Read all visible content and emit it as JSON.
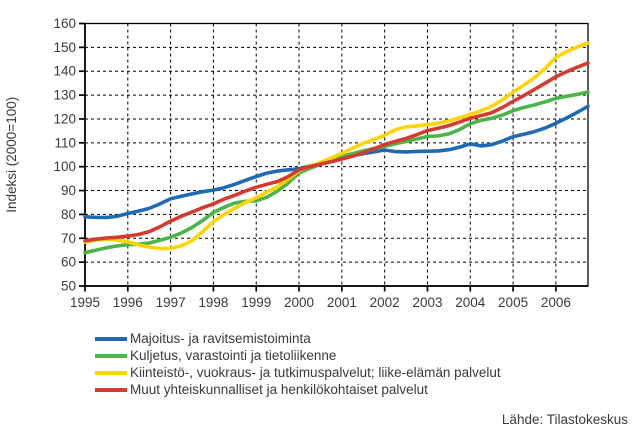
{
  "chart_data": {
    "type": "line",
    "title": "",
    "ylabel": "Indeksi (2000=100)",
    "xlabel": "",
    "grid": true,
    "legend_position": "bottom-left",
    "ylim": [
      50,
      160
    ],
    "xlim": [
      1995,
      2006.75
    ],
    "y_ticks": [
      50,
      60,
      70,
      80,
      90,
      100,
      110,
      120,
      130,
      140,
      150,
      160
    ],
    "x_tick_labels": [
      "1995",
      "1996",
      "1997",
      "1998",
      "1999",
      "2000",
      "2001",
      "2002",
      "2003",
      "2004",
      "2005",
      "2006"
    ],
    "x_start": 1995,
    "x_step": 0.25,
    "series": [
      {
        "name": "Majoitus- ja ravitsemistoiminta",
        "color": "#1f6ab4",
        "values": [
          79.0,
          78.8,
          78.7,
          79.2,
          80.4,
          81.4,
          82.5,
          84.4,
          86.6,
          87.6,
          88.6,
          89.5,
          90.2,
          91.2,
          92.6,
          94.3,
          95.9,
          97.3,
          98.2,
          98.7,
          99.1,
          100.3,
          101.5,
          102.4,
          103.5,
          104.6,
          105.5,
          106.2,
          107.0,
          106.3,
          106.2,
          106.4,
          106.5,
          106.6,
          107.1,
          108.2,
          109.6,
          108.7,
          109.2,
          110.7,
          112.6,
          113.6,
          114.7,
          116.2,
          118.2,
          120.4,
          122.8,
          125.3
        ]
      },
      {
        "name": "Kuljetus, varastointi ja tietoliikenne",
        "color": "#4bb648",
        "values": [
          64.0,
          65.0,
          66.0,
          66.8,
          67.3,
          67.5,
          68.0,
          69.2,
          70.4,
          72.2,
          74.5,
          77.5,
          80.8,
          83.0,
          84.8,
          85.5,
          85.7,
          87.2,
          89.8,
          93.2,
          97.3,
          99.3,
          101.0,
          102.8,
          104.3,
          105.5,
          106.6,
          107.6,
          108.5,
          109.6,
          110.6,
          111.6,
          112.7,
          112.9,
          113.8,
          115.6,
          118.0,
          119.4,
          120.3,
          121.6,
          123.5,
          124.8,
          125.9,
          127.2,
          128.6,
          129.5,
          130.3,
          131.3
        ]
      },
      {
        "name": "Kiinteistö-, vuokraus- ja tutkimuspalvelut; liike-elämän palvelut",
        "color": "#ffd400",
        "values": [
          68.3,
          69.3,
          69.6,
          69.3,
          68.5,
          67.3,
          66.3,
          65.7,
          65.8,
          66.8,
          69.0,
          72.8,
          77.0,
          80.0,
          82.6,
          85.0,
          87.0,
          89.4,
          91.6,
          94.8,
          98.3,
          100.2,
          101.8,
          103.6,
          105.6,
          107.7,
          109.8,
          111.4,
          113.2,
          115.5,
          116.7,
          117.1,
          117.6,
          118.2,
          119.2,
          120.5,
          121.9,
          123.4,
          125.3,
          128.0,
          131.2,
          134.2,
          137.3,
          141.2,
          145.8,
          148.2,
          150.2,
          151.8
        ]
      },
      {
        "name": "Muut yhteiskunnalliset ja henkilökohtaiset palvelut",
        "color": "#d53a2f",
        "values": [
          69.0,
          69.6,
          70.1,
          70.4,
          70.9,
          71.6,
          72.8,
          74.8,
          77.2,
          79.2,
          81.0,
          82.8,
          84.4,
          86.4,
          88.0,
          89.8,
          91.4,
          92.6,
          93.8,
          95.9,
          98.7,
          100.0,
          101.1,
          102.1,
          103.2,
          104.4,
          105.8,
          107.5,
          109.3,
          110.6,
          111.8,
          113.4,
          115.1,
          116.1,
          117.2,
          118.7,
          120.3,
          121.4,
          122.6,
          124.8,
          127.4,
          129.8,
          132.4,
          135.0,
          137.7,
          139.8,
          141.7,
          143.4
        ]
      }
    ],
    "source": "Lähde: Tilastokeskus"
  }
}
